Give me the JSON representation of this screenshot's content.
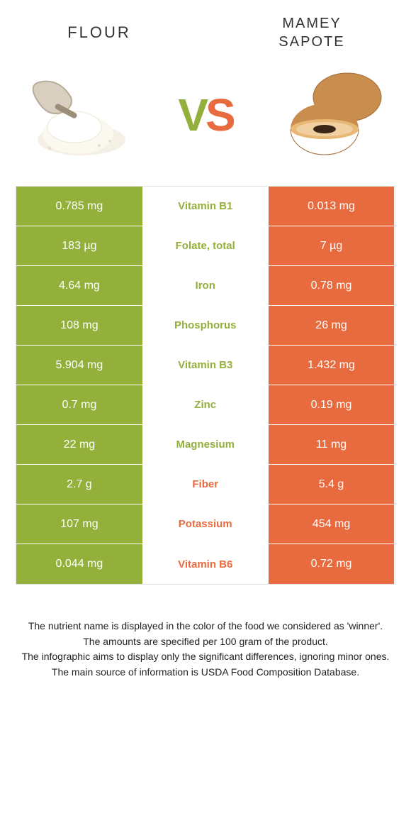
{
  "colors": {
    "green": "#93b03b",
    "orange": "#e86b3f",
    "row_border": "#ffffff",
    "background": "#ffffff",
    "text": "#333333"
  },
  "header": {
    "left_title": "Flour",
    "right_title_line1": "Mamey",
    "right_title_line2": "Sapote"
  },
  "vs": {
    "v": "V",
    "s": "S"
  },
  "rows": [
    {
      "left": "0.785 mg",
      "label": "Vitamin B1",
      "right": "0.013 mg",
      "winner": "left"
    },
    {
      "left": "183 µg",
      "label": "Folate, total",
      "right": "7 µg",
      "winner": "left"
    },
    {
      "left": "4.64 mg",
      "label": "Iron",
      "right": "0.78 mg",
      "winner": "left"
    },
    {
      "left": "108 mg",
      "label": "Phosphorus",
      "right": "26 mg",
      "winner": "left"
    },
    {
      "left": "5.904 mg",
      "label": "Vitamin B3",
      "right": "1.432 mg",
      "winner": "left"
    },
    {
      "left": "0.7 mg",
      "label": "Zinc",
      "right": "0.19 mg",
      "winner": "left"
    },
    {
      "left": "22 mg",
      "label": "Magnesium",
      "right": "11 mg",
      "winner": "left"
    },
    {
      "left": "2.7 g",
      "label": "Fiber",
      "right": "5.4 g",
      "winner": "right"
    },
    {
      "left": "107 mg",
      "label": "Potassium",
      "right": "454 mg",
      "winner": "right"
    },
    {
      "left": "0.044 mg",
      "label": "Vitamin B6",
      "right": "0.72 mg",
      "winner": "right"
    }
  ],
  "footer": {
    "line1": "The nutrient name is displayed in the color of the food we considered as 'winner'.",
    "line2": "The amounts are specified per 100 gram of the product.",
    "line3": "The infographic aims to display only the significant differences, ignoring minor ones.",
    "line4": "The main source of information is USDA Food Composition Database."
  }
}
